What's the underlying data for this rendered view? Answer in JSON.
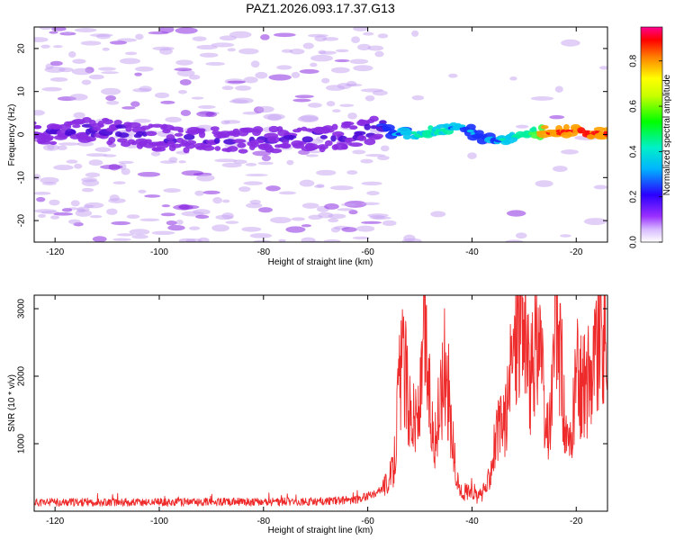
{
  "title": "PAZ1.2026.093.17.37.G13",
  "colors": {
    "snr_line": "#ee2a2a",
    "spectral_light": "#c9a7f2",
    "spectral_mid": "#8a2be2",
    "spectral_dark": "#4b0bd6"
  },
  "chart_data": [
    {
      "type": "heatmap",
      "name": "spectrogram",
      "xlabel": "Height of straight line (km)",
      "ylabel": "Frequency (Hz)",
      "xlim": [
        -124,
        -14
      ],
      "ylim": [
        -25,
        25
      ],
      "xticks": [
        -120,
        -100,
        -80,
        -60,
        -40,
        -20
      ],
      "xtick_labels": [
        "-120",
        "-100",
        "-80",
        "-60",
        "-40",
        "-20"
      ],
      "yticks": [
        -20,
        -10,
        0,
        10,
        20
      ],
      "ytick_labels": [
        "-20",
        "-10",
        "0",
        "10",
        "20"
      ],
      "ridge": {
        "x": [
          -124,
          -110,
          -100,
          -90,
          -80,
          -70,
          -62,
          -58,
          -55,
          -50,
          -45,
          -42,
          -38,
          -35,
          -30,
          -25,
          -20,
          -14
        ],
        "y": [
          0.5,
          0.8,
          -0.8,
          -1.0,
          -1.2,
          -0.8,
          0.0,
          2.0,
          0.0,
          0.5,
          1.2,
          2.0,
          -0.8,
          -1.5,
          0.0,
          0.8,
          0.8,
          0.3
        ],
        "amplitude": [
          0.22,
          0.28,
          0.24,
          0.22,
          0.26,
          0.25,
          0.24,
          0.3,
          0.45,
          0.6,
          0.55,
          0.45,
          0.4,
          0.5,
          0.62,
          0.9,
          0.92,
          0.95
        ]
      },
      "colorbar": {
        "label": "Normalized spectral amplitude",
        "range": [
          0.0,
          0.95
        ],
        "ticks": [
          0.0,
          0.2,
          0.4,
          0.6,
          0.8
        ],
        "tick_labels": [
          "0.0",
          "0.2",
          "0.4",
          "0.6",
          "0.8"
        ]
      }
    },
    {
      "type": "line",
      "name": "snr",
      "xlabel": "Height of straight line (km)",
      "ylabel": "SNR (10 * v/v)",
      "xlim": [
        -124,
        -14
      ],
      "ylim": [
        0,
        3200
      ],
      "xticks": [
        -120,
        -100,
        -80,
        -60,
        -40,
        -20
      ],
      "xtick_labels": [
        "-120",
        "-100",
        "-80",
        "-60",
        "-40",
        "-20"
      ],
      "yticks": [
        1000,
        2000,
        3000
      ],
      "ytick_labels": [
        "1000",
        "2000",
        "3000"
      ],
      "series": [
        {
          "name": "SNR",
          "x": [
            -124,
            -110,
            -100,
            -90,
            -80,
            -70,
            -62,
            -58,
            -56,
            -55,
            -54,
            -53,
            -52,
            -51,
            -50,
            -49,
            -48,
            -47,
            -46,
            -45,
            -44,
            -43,
            -42,
            -41,
            -40,
            -39,
            -38,
            -37,
            -36,
            -35,
            -34,
            -33,
            -32,
            -31,
            -30,
            -29,
            -28,
            -27,
            -26,
            -25,
            -24,
            -23,
            -22,
            -21,
            -20,
            -19,
            -18,
            -17,
            -16,
            -15,
            -14
          ],
          "y": [
            130,
            135,
            130,
            140,
            135,
            145,
            170,
            280,
            450,
            650,
            1900,
            2200,
            1600,
            1300,
            1500,
            2600,
            1500,
            1000,
            1700,
            2300,
            1200,
            500,
            250,
            300,
            350,
            200,
            250,
            400,
            900,
            1150,
            1300,
            1600,
            2500,
            3000,
            2800,
            1900,
            2300,
            2800,
            1100,
            1300,
            2700,
            2400,
            1000,
            900,
            2100,
            1800,
            1900,
            2200,
            2450,
            2600,
            2500
          ]
        }
      ]
    }
  ]
}
